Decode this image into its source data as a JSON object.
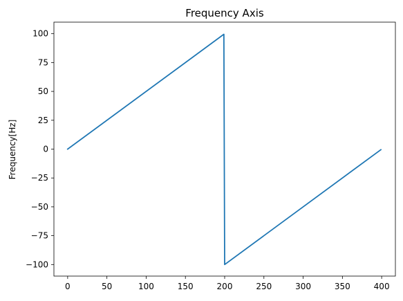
{
  "chart_data": {
    "type": "line",
    "title": "Frequency Axis",
    "xlabel": "",
    "ylabel": "Frequency[Hz]",
    "xlim": [
      -17.5,
      417.5
    ],
    "ylim": [
      -110,
      110
    ],
    "x_ticks": [
      0,
      50,
      100,
      150,
      200,
      250,
      300,
      350,
      400
    ],
    "y_ticks": [
      -100,
      -75,
      -50,
      -25,
      0,
      25,
      50,
      75,
      100
    ],
    "x_tick_labels": [
      "0",
      "50",
      "100",
      "150",
      "200",
      "250",
      "300",
      "350",
      "400"
    ],
    "y_tick_labels": [
      "−100",
      "−75",
      "−50",
      "−25",
      "0",
      "25",
      "50",
      "75",
      "100"
    ],
    "grid": false,
    "series": [
      {
        "color": "#1f77b4",
        "x": [
          0,
          199,
          200,
          399
        ],
        "y": [
          0,
          99.5,
          -100,
          -0.5
        ]
      }
    ]
  }
}
